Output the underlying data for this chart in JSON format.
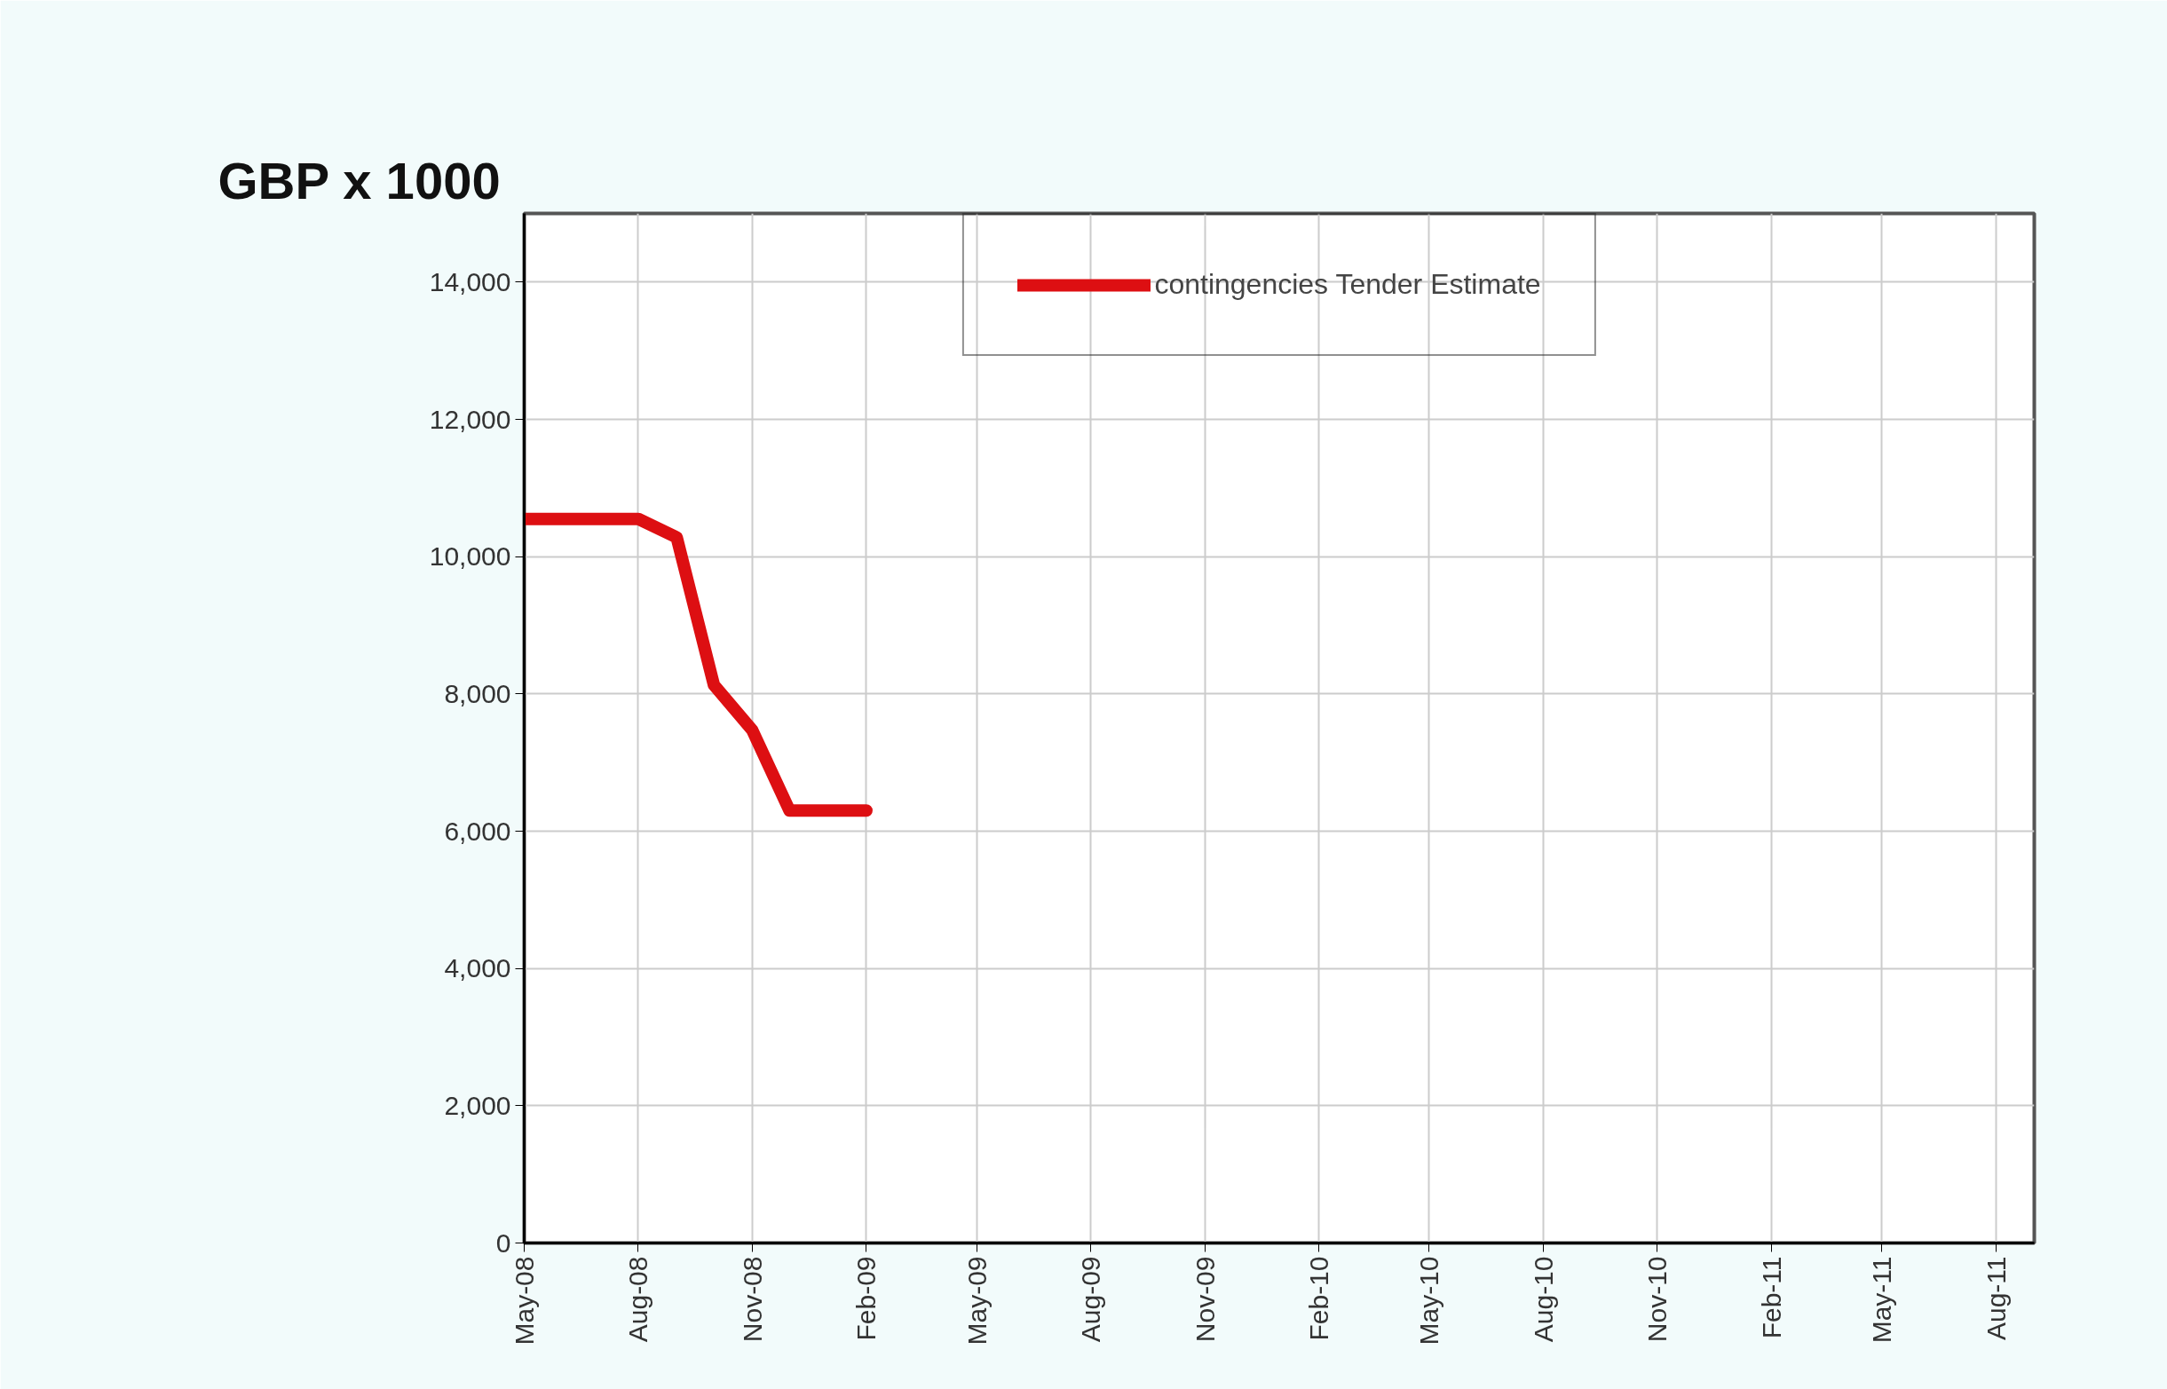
{
  "chart_data": {
    "type": "line",
    "ylabel": "GBP x 1000",
    "x": [
      "2008-05",
      "2008-06",
      "2008-07",
      "2008-08",
      "2008-09",
      "2008-10",
      "2008-11",
      "2008-12",
      "2009-01",
      "2009-02"
    ],
    "series": [
      {
        "name": "contingencies Tender Estimate",
        "color": "#dd0f12",
        "values": [
          10550,
          10550,
          10550,
          10550,
          10280,
          8130,
          7470,
          6300,
          6300,
          6300
        ]
      }
    ],
    "xlim": [
      "2008-05",
      "2011-09"
    ],
    "xticks": [
      {
        "value": "2008-05",
        "label": "May-08"
      },
      {
        "value": "2008-08",
        "label": "Aug-08"
      },
      {
        "value": "2008-11",
        "label": "Nov-08"
      },
      {
        "value": "2009-02",
        "label": "Feb-09"
      },
      {
        "value": "2009-05",
        "label": "May-09"
      },
      {
        "value": "2009-08",
        "label": "Aug-09"
      },
      {
        "value": "2009-11",
        "label": "Nov-09"
      },
      {
        "value": "2010-02",
        "label": "Feb-10"
      },
      {
        "value": "2010-05",
        "label": "May-10"
      },
      {
        "value": "2010-08",
        "label": "Aug-10"
      },
      {
        "value": "2010-11",
        "label": "Nov-10"
      },
      {
        "value": "2011-02",
        "label": "Feb-11"
      },
      {
        "value": "2011-05",
        "label": "May-11"
      },
      {
        "value": "2011-08",
        "label": "Aug-11"
      }
    ],
    "ylim": [
      0,
      15000
    ],
    "yticks": [
      {
        "value": 0,
        "label": "0"
      },
      {
        "value": 2000,
        "label": "2,000"
      },
      {
        "value": 4000,
        "label": "4,000"
      },
      {
        "value": 6000,
        "label": "6,000"
      },
      {
        "value": 8000,
        "label": "8,000"
      },
      {
        "value": 10000,
        "label": "10,000"
      },
      {
        "value": 12000,
        "label": "12,000"
      },
      {
        "value": 14000,
        "label": "14,000"
      }
    ],
    "grid": true,
    "legend": "top",
    "marker": "none",
    "line_style": "solid"
  }
}
